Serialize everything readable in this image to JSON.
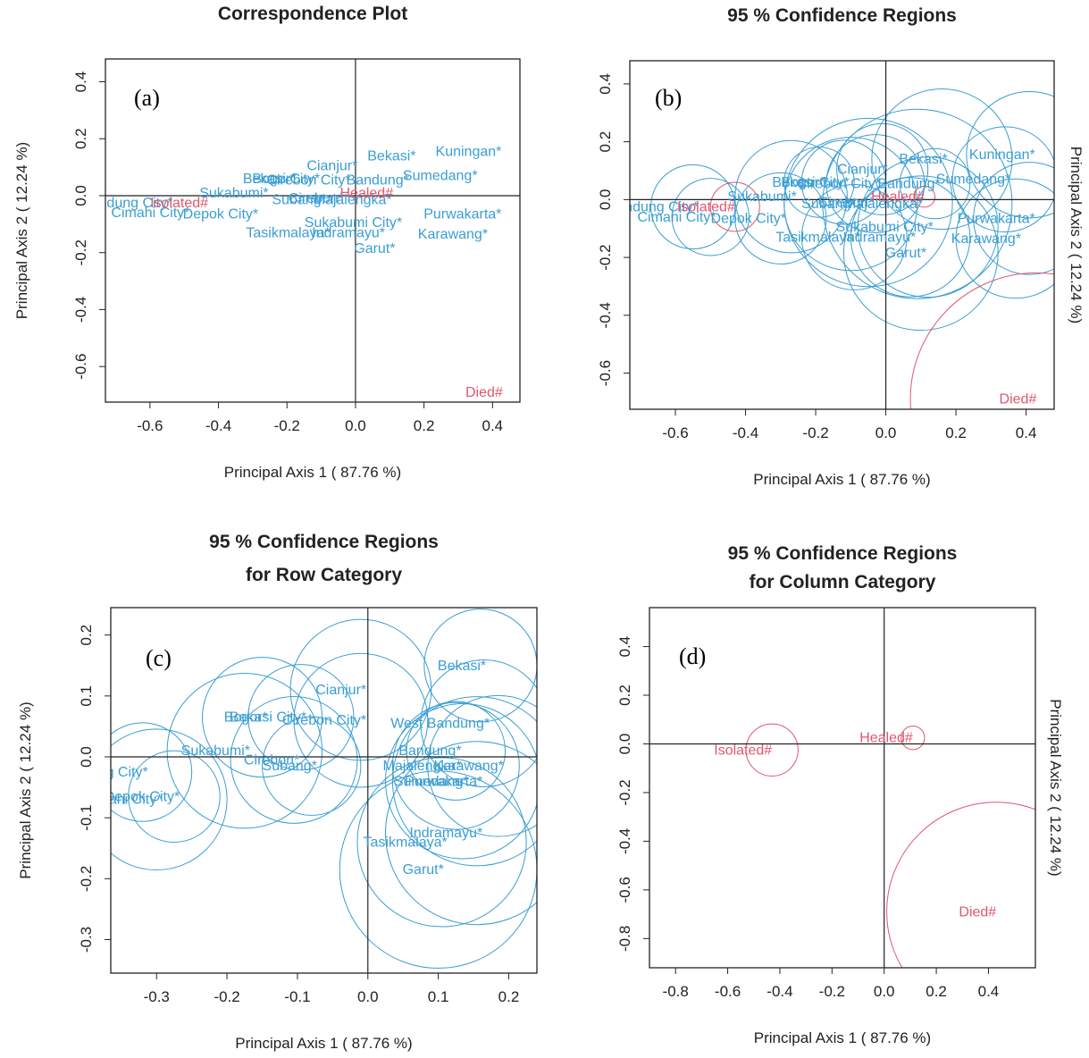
{
  "figure": {
    "panel_tags": [
      "(a)",
      "(b)",
      "(c)",
      "(d)"
    ]
  },
  "colors": {
    "row": "#3a9ed3",
    "column": "#e0566e",
    "axis": "#222222"
  },
  "chart_data": [
    {
      "type": "scatter",
      "title": [
        "Correspondence Plot"
      ],
      "tag": "(a)",
      "xlabel": "Principal Axis 1 ( 87.76 %)",
      "ylabel": "Principal Axis 2 ( 12.24 %)",
      "ylabel_side": "left",
      "xlim": [
        -0.73,
        0.48
      ],
      "ylim": [
        -0.725,
        0.48
      ],
      "xticks": [
        "-0.6",
        "-0.4",
        "-0.2",
        "0.0",
        "0.2",
        "0.4"
      ],
      "yticks": [
        "0.4",
        "0.2",
        "0.0",
        "-0.2",
        "-0.4",
        "-0.6"
      ],
      "points": [
        {
          "label": "Kuningan",
          "x": 0.41,
          "y": 0.155,
          "group": "row"
        },
        {
          "label": "Bekasi",
          "x": 0.16,
          "y": 0.14,
          "group": "row"
        },
        {
          "label": "Cianjur",
          "x": -0.01,
          "y": 0.105,
          "group": "row"
        },
        {
          "label": "Sumedang",
          "x": 0.34,
          "y": 0.07,
          "group": "row"
        },
        {
          "label": "Bekasi City",
          "x": -0.12,
          "y": 0.06,
          "group": "row"
        },
        {
          "label": "Bogor",
          "x": -0.19,
          "y": 0.06,
          "group": "row"
        },
        {
          "label": "Cirebon City",
          "x": -0.03,
          "y": 0.055,
          "group": "row"
        },
        {
          "label": "Bandung",
          "x": 0.14,
          "y": 0.055,
          "group": "row"
        },
        {
          "label": "Sukabumi",
          "x": -0.27,
          "y": 0.01,
          "group": "row"
        },
        {
          "label": "Subang",
          "x": -0.1,
          "y": -0.015,
          "group": "row"
        },
        {
          "label": "Cirebon",
          "x": -0.05,
          "y": -0.01,
          "group": "row"
        },
        {
          "label": "Majalengka",
          "x": 0.09,
          "y": -0.015,
          "group": "row"
        },
        {
          "label": "Bandung City",
          "x": -0.55,
          "y": -0.025,
          "group": "row"
        },
        {
          "label": "Cimahi City",
          "x": -0.5,
          "y": -0.06,
          "group": "row"
        },
        {
          "label": "Depok City",
          "x": -0.3,
          "y": -0.065,
          "group": "row"
        },
        {
          "label": "Purwakarta",
          "x": 0.41,
          "y": -0.065,
          "group": "row"
        },
        {
          "label": "Sukabumi City",
          "x": 0.12,
          "y": -0.095,
          "group": "row"
        },
        {
          "label": "Tasikmalaya",
          "x": -0.09,
          "y": -0.13,
          "group": "row"
        },
        {
          "label": "Indramayu",
          "x": 0.07,
          "y": -0.13,
          "group": "row"
        },
        {
          "label": "Karawang",
          "x": 0.37,
          "y": -0.135,
          "group": "row"
        },
        {
          "label": "Garut",
          "x": 0.1,
          "y": -0.185,
          "group": "row"
        },
        {
          "label": "Isolated#",
          "x": -0.43,
          "y": -0.025,
          "group": "column"
        },
        {
          "label": "Healed#",
          "x": 0.11,
          "y": 0.01,
          "group": "column"
        },
        {
          "label": "Died#",
          "x": 0.43,
          "y": -0.69,
          "group": "column"
        }
      ]
    },
    {
      "type": "scatter",
      "title": [
        "95 % Confidence Regions"
      ],
      "tag": "(b)",
      "xlabel": "Principal Axis 1 ( 87.76 %)",
      "ylabel": "Principal Axis 2 ( 12.24 %)",
      "ylabel_side": "right",
      "xlim": [
        -0.73,
        0.48
      ],
      "ylim": [
        -0.725,
        0.48
      ],
      "xticks": [
        "-0.6",
        "-0.4",
        "-0.2",
        "0.0",
        "0.2",
        "0.4"
      ],
      "yticks": [
        "0.4",
        "0.2",
        "0.0",
        "-0.2",
        "-0.4",
        "-0.6"
      ],
      "points": [
        {
          "label": "Kuningan",
          "x": 0.41,
          "y": 0.155,
          "r": 0.18,
          "group": "row"
        },
        {
          "label": "Bekasi",
          "x": 0.16,
          "y": 0.14,
          "r": 0.2,
          "group": "row"
        },
        {
          "label": "Cianjur",
          "x": -0.01,
          "y": 0.105,
          "r": 0.13,
          "group": "row"
        },
        {
          "label": "Sumedang",
          "x": 0.34,
          "y": 0.07,
          "r": 0.15,
          "group": "row"
        },
        {
          "label": "Bekasi City",
          "x": -0.12,
          "y": 0.06,
          "r": 0.12,
          "group": "row"
        },
        {
          "label": "Bogor",
          "x": -0.19,
          "y": 0.06,
          "r": 0.1,
          "group": "row"
        },
        {
          "label": "Cirebon City",
          "x": -0.03,
          "y": 0.055,
          "r": 0.14,
          "group": "row"
        },
        {
          "label": "Bandung",
          "x": 0.14,
          "y": 0.055,
          "r": 0.1,
          "group": "row"
        },
        {
          "label": "Sukabumi",
          "x": -0.27,
          "y": 0.01,
          "r": 0.16,
          "group": "row"
        },
        {
          "label": "Subang",
          "x": -0.1,
          "y": -0.015,
          "r": 0.19,
          "group": "row"
        },
        {
          "label": "Cirebon",
          "x": -0.05,
          "y": -0.01,
          "r": 0.24,
          "group": "row"
        },
        {
          "label": "Majalengka",
          "x": 0.09,
          "y": -0.015,
          "r": 0.27,
          "group": "row"
        },
        {
          "label": "Bandung City",
          "x": -0.55,
          "y": -0.025,
          "r": 0.12,
          "group": "row"
        },
        {
          "label": "Cimahi City",
          "x": -0.5,
          "y": -0.06,
          "r": 0.11,
          "group": "row"
        },
        {
          "label": "Depok City",
          "x": -0.3,
          "y": -0.065,
          "r": 0.13,
          "group": "row"
        },
        {
          "label": "Purwakarta",
          "x": 0.41,
          "y": -0.065,
          "r": 0.16,
          "group": "row"
        },
        {
          "label": "Sukabumi City",
          "x": 0.12,
          "y": -0.095,
          "r": 0.2,
          "group": "row"
        },
        {
          "label": "Tasikmalaya",
          "x": -0.09,
          "y": -0.13,
          "r": 0.15,
          "group": "row"
        },
        {
          "label": "Indramayu",
          "x": 0.07,
          "y": -0.13,
          "r": 0.17,
          "group": "row"
        },
        {
          "label": "Karawang",
          "x": 0.37,
          "y": -0.135,
          "r": 0.17,
          "group": "row"
        },
        {
          "label": "Garut",
          "x": 0.1,
          "y": -0.185,
          "r": 0.22,
          "group": "row"
        },
        {
          "label": "Isolated#",
          "x": -0.43,
          "y": -0.025,
          "r": 0.07,
          "group": "column"
        },
        {
          "label": "Healed#",
          "x": 0.11,
          "y": 0.01,
          "r": 0.03,
          "group": "column"
        },
        {
          "label": "Died#",
          "x": 0.43,
          "y": -0.69,
          "r": 0.36,
          "group": "column"
        }
      ]
    },
    {
      "type": "scatter",
      "title": [
        "95 % Confidence Regions",
        "for Row Category"
      ],
      "tag": "(c)",
      "xlabel": "Principal Axis 1 ( 87.76 %)",
      "ylabel": "Principal Axis 2 ( 12.24 %)",
      "ylabel_side": "left",
      "xlim": [
        -0.365,
        0.24
      ],
      "ylim": [
        -0.355,
        0.245
      ],
      "xticks": [
        "-0.3",
        "-0.2",
        "-0.1",
        "0.0",
        "0.1",
        "0.2"
      ],
      "yticks": [
        "0.2",
        "0.1",
        "0.0",
        "-0.1",
        "-0.2",
        "-0.3"
      ],
      "points": [
        {
          "label": "Bekasi",
          "x": 0.16,
          "y": 0.15,
          "r": 0.08,
          "group": "row"
        },
        {
          "label": "Cianjur",
          "x": -0.01,
          "y": 0.11,
          "r": 0.1,
          "group": "row"
        },
        {
          "label": "Bogor",
          "x": -0.15,
          "y": 0.065,
          "r": 0.085,
          "group": "row"
        },
        {
          "label": "Bekasi City",
          "x": -0.095,
          "y": 0.065,
          "r": 0.075,
          "group": "row"
        },
        {
          "label": "Cirebon City",
          "x": -0.01,
          "y": 0.06,
          "r": 0.095,
          "group": "row"
        },
        {
          "label": "West Bandung",
          "x": 0.165,
          "y": 0.055,
          "r": 0.09,
          "group": "row"
        },
        {
          "label": "Bandung",
          "x": 0.125,
          "y": 0.01,
          "r": 0.07,
          "group": "row"
        },
        {
          "label": "Sukabumi",
          "x": -0.175,
          "y": 0.01,
          "r": 0.11,
          "group": "row"
        },
        {
          "label": "Majalengka",
          "x": 0.125,
          "y": -0.015,
          "r": 0.09,
          "group": "row"
        },
        {
          "label": "Cirebon",
          "x": -0.105,
          "y": -0.005,
          "r": 0.09,
          "group": "row"
        },
        {
          "label": "Subang",
          "x": -0.08,
          "y": -0.015,
          "r": 0.07,
          "group": "row"
        },
        {
          "label": "Karawang",
          "x": 0.185,
          "y": -0.015,
          "r": 0.1,
          "group": "row"
        },
        {
          "label": "Sumedang",
          "x": 0.135,
          "y": -0.04,
          "r": 0.11,
          "group": "row"
        },
        {
          "label": "Bandung City",
          "x": -0.32,
          "y": -0.025,
          "r": 0.07,
          "group": "row"
        },
        {
          "label": "Depok City",
          "x": -0.275,
          "y": -0.065,
          "r": 0.065,
          "group": "row"
        },
        {
          "label": "Cimahi City",
          "x": -0.3,
          "y": -0.07,
          "r": 0.1,
          "group": "row"
        },
        {
          "label": "Purwakarta",
          "x": 0.155,
          "y": -0.04,
          "r": 0.12,
          "group": "row"
        },
        {
          "label": "Indramayu",
          "x": 0.155,
          "y": -0.125,
          "r": 0.13,
          "group": "row"
        },
        {
          "label": "Tasikmalaya",
          "x": 0.105,
          "y": -0.14,
          "r": 0.12,
          "group": "row"
        },
        {
          "label": "Garut",
          "x": 0.1,
          "y": -0.185,
          "r": 0.14,
          "group": "row"
        }
      ]
    },
    {
      "type": "scatter",
      "title": [
        "95 % Confidence Regions",
        "for Column Category"
      ],
      "tag": "(d)",
      "xlabel": "Principal Axis 1 ( 87.76 %)",
      "ylabel": "Principal Axis 2 ( 12.24 %)",
      "ylabel_side": "right",
      "xlim": [
        -0.9,
        0.58
      ],
      "ylim": [
        -0.92,
        0.56
      ],
      "xticks": [
        "-0.8",
        "-0.6",
        "-0.4",
        "-0.2",
        "0.0",
        "0.2",
        "0.4"
      ],
      "yticks": [
        "0.4",
        "0.2",
        "0.0",
        "-0.2",
        "-0.4",
        "-0.6",
        "-0.8"
      ],
      "points": [
        {
          "label": "Isolated#",
          "x": -0.43,
          "y": -0.025,
          "r": 0.1,
          "group": "column"
        },
        {
          "label": "Healed#",
          "x": 0.11,
          "y": 0.025,
          "r": 0.045,
          "group": "column"
        },
        {
          "label": "Died#",
          "x": 0.43,
          "y": -0.69,
          "r": 0.42,
          "group": "column"
        }
      ]
    }
  ]
}
